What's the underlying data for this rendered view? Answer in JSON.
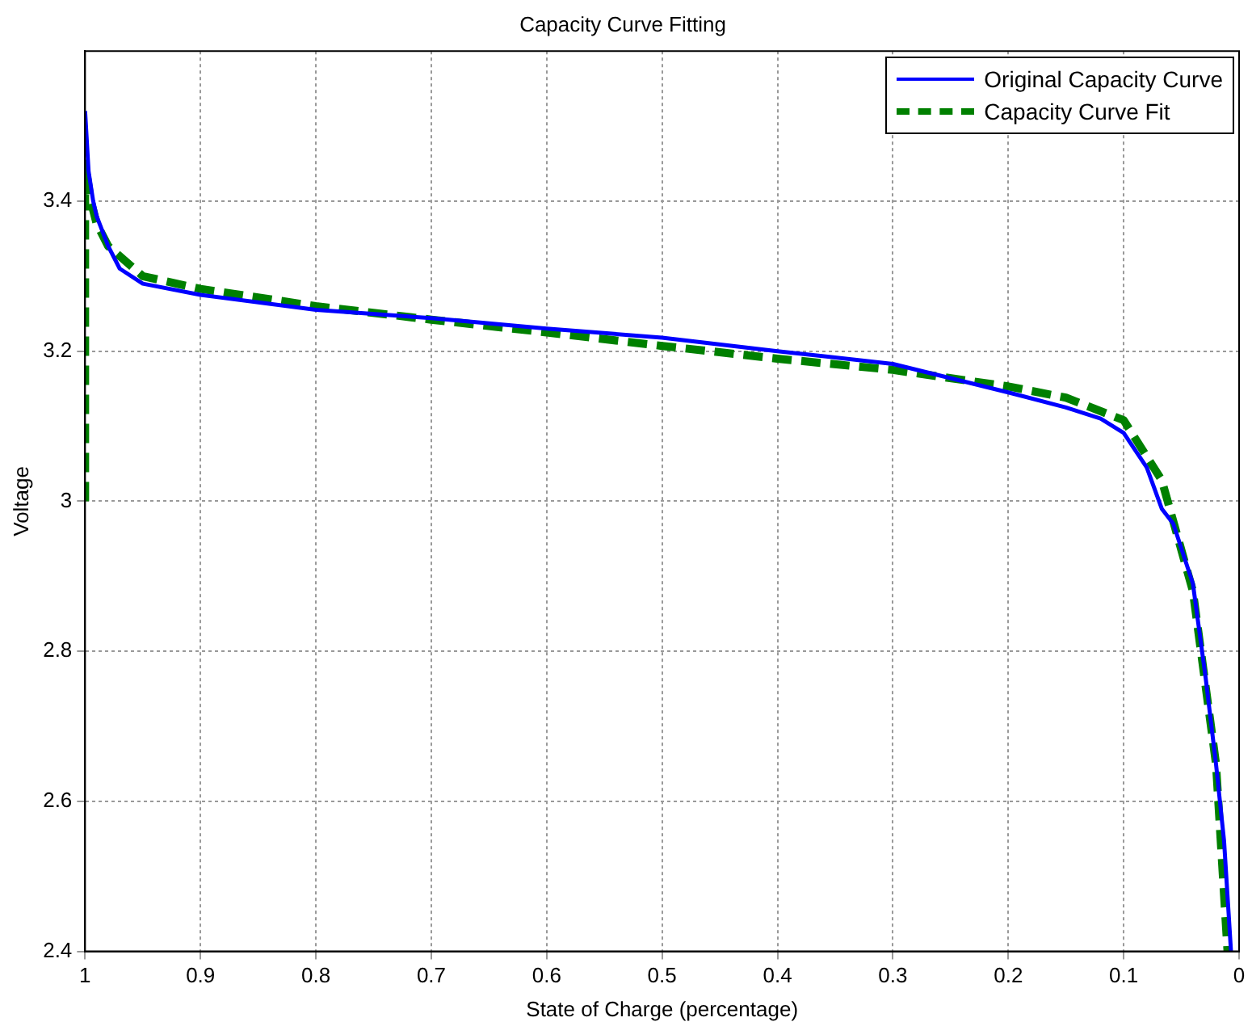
{
  "chart_data": {
    "type": "line",
    "title": "Capacity Curve Fitting",
    "xlabel": "State of Charge (percentage)",
    "ylabel": "Voltage",
    "xlim": [
      1,
      0
    ],
    "xticks": [
      1,
      0.9,
      0.8,
      0.7,
      0.6,
      0.5,
      0.4,
      0.3,
      0.2,
      0.1,
      0
    ],
    "ylim": [
      2.4,
      3.6
    ],
    "yticks": [
      2.4,
      2.6,
      2.8,
      3,
      3.2,
      3.4
    ],
    "grid": true,
    "legend": "top right",
    "marker": "none",
    "series": [
      {
        "name": "Original Capacity Curve",
        "color": "#0000ff",
        "line_style": "solid",
        "x": [
          1,
          0.997,
          0.993,
          0.99,
          0.98,
          0.97,
          0.95,
          0.9,
          0.8,
          0.7,
          0.6,
          0.5,
          0.4,
          0.3,
          0.2,
          0.15,
          0.12,
          0.1,
          0.08,
          0.067,
          0.057,
          0.04,
          0.029,
          0.02,
          0.013,
          0.007
        ],
        "values": [
          3.52,
          3.44,
          3.4,
          3.38,
          3.34,
          3.31,
          3.29,
          3.275,
          3.255,
          3.244,
          3.23,
          3.218,
          3.2,
          3.183,
          3.145,
          3.125,
          3.11,
          3.091,
          3.045,
          2.99,
          2.97,
          2.89,
          2.765,
          2.65,
          2.547,
          2.4
        ]
      },
      {
        "name": "Capacity Curve Fit",
        "color": "#008000",
        "line_style": "dashed",
        "x": [
          1,
          1,
          0.995,
          0.99,
          0.98,
          0.95,
          0.9,
          0.8,
          0.7,
          0.6,
          0.5,
          0.4,
          0.3,
          0.2,
          0.15,
          0.1,
          0.067,
          0.04,
          0.02,
          0.01
        ],
        "values": [
          3,
          3.45,
          3.4,
          3.37,
          3.34,
          3.3,
          3.283,
          3.26,
          3.242,
          3.225,
          3.207,
          3.19,
          3.175,
          3.153,
          3.138,
          3.108,
          3.028,
          2.88,
          2.65,
          2.4
        ]
      }
    ]
  }
}
